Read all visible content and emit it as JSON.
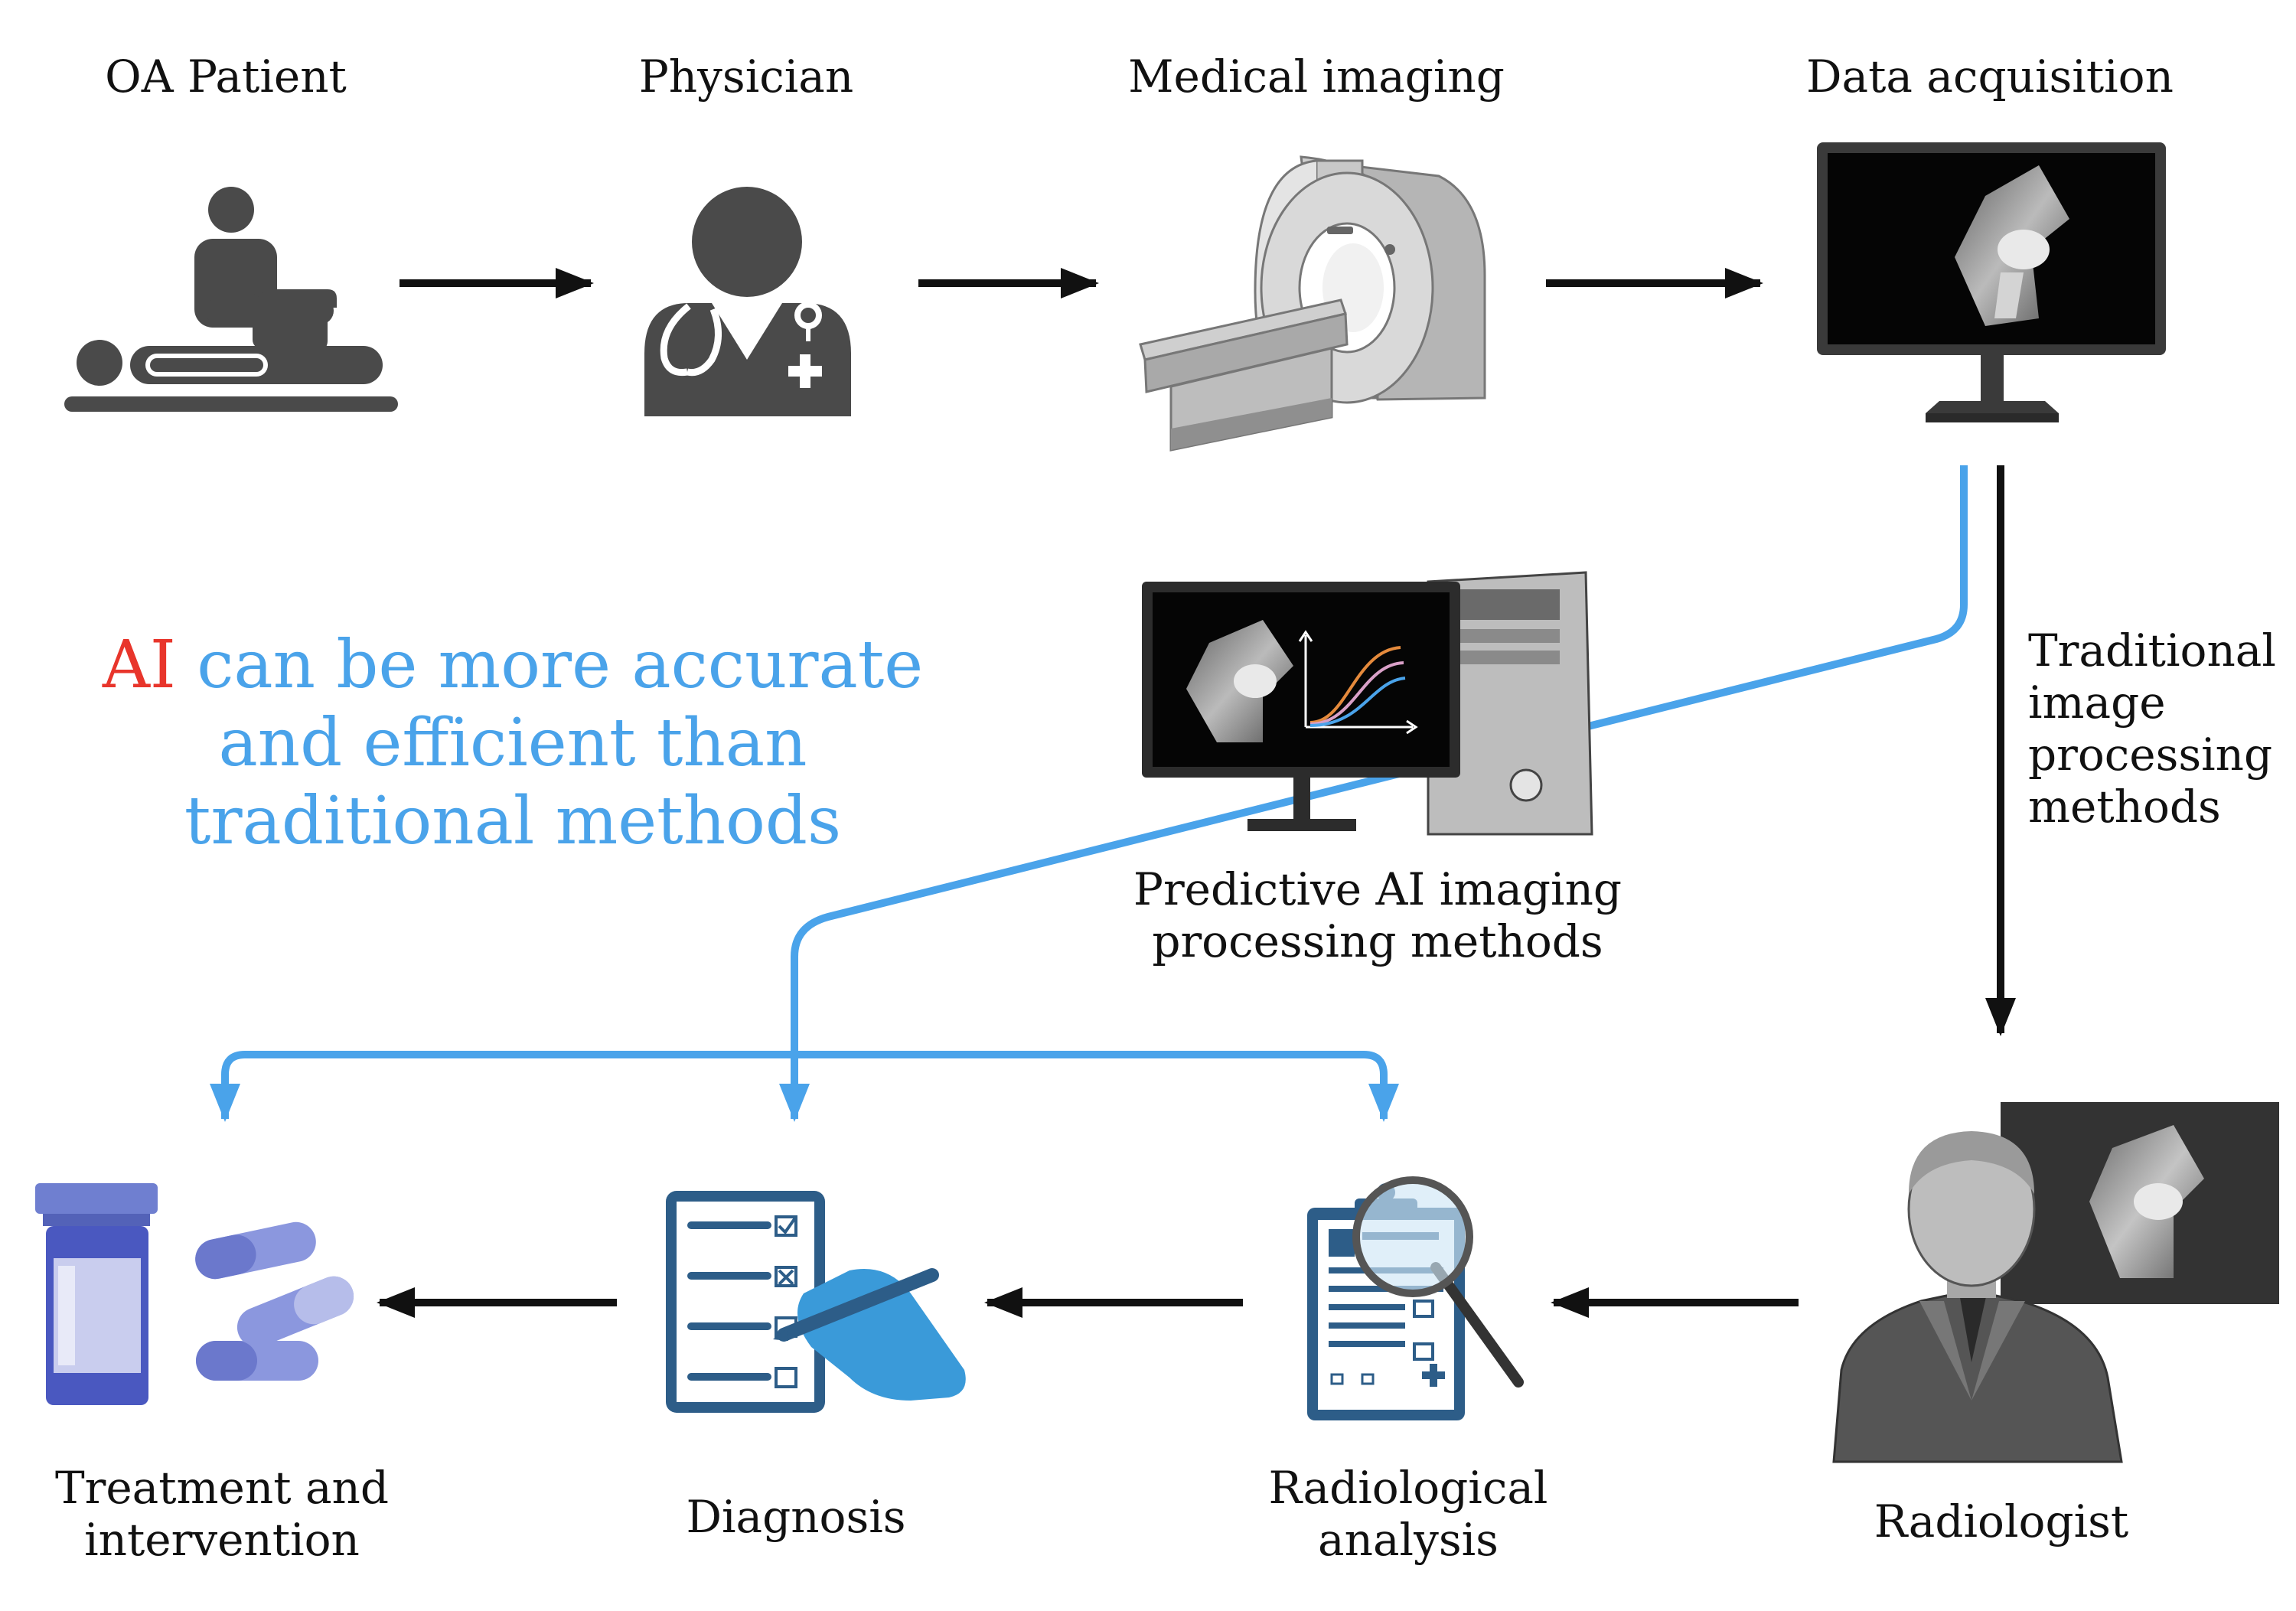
{
  "colors": {
    "ai_blue": "#4aa3ea",
    "ai_red": "#e8352b",
    "arrow_black": "#111111"
  },
  "steps": {
    "patient": {
      "label": "OA Patient",
      "icon": "patient-on-table-icon"
    },
    "physician": {
      "label": "Physician",
      "icon": "physician-icon"
    },
    "imaging": {
      "label": "Medical imaging",
      "icon": "mri-scanner-icon"
    },
    "acquisition": {
      "label": "Data acquisition",
      "icon": "monitor-knee-xray-icon"
    },
    "ai_method": {
      "line1": "Predictive AI imaging",
      "line2": "processing methods",
      "icon": "ai-workstation-icon"
    },
    "traditional": {
      "line1": "Traditional",
      "line2": "image",
      "line3": "processing",
      "line4": "methods"
    },
    "radiologist": {
      "label": "Radiologist",
      "icon": "radiologist-icon"
    },
    "analysis": {
      "line1": "Radiological",
      "line2": "analysis",
      "icon": "clipboard-magnifier-icon"
    },
    "diagnosis": {
      "label": "Diagnosis",
      "icon": "checklist-hand-icon"
    },
    "treatment": {
      "line1": "Treatment and",
      "line2": "intervention",
      "icon": "pills-bottle-icon"
    }
  },
  "callout": {
    "ai_word": "AI",
    "line1_rest": " can be more accurate",
    "line2": "and efficient than",
    "line3": "traditional methods"
  }
}
